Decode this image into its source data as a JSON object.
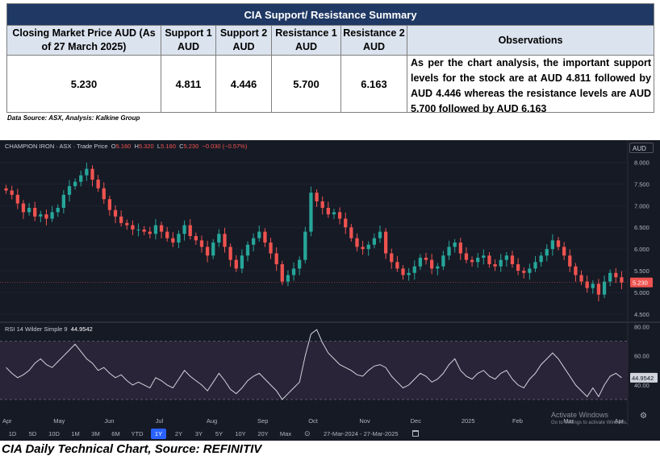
{
  "table": {
    "title": "CIA Support/  Resistance Summary",
    "headers": [
      "Closing Market Price AUD (As of 27 March 2025)",
      "Support 1 AUD",
      "Support 2 AUD",
      "Resistance 1 AUD",
      "Resistance 2 AUD",
      "Observations"
    ],
    "values": [
      "5.230",
      "4.811",
      "4.446",
      "5.700",
      "6.163"
    ],
    "observations": "As per the chart analysis, the important support levels for the stock are at AUD 4.811 followed by AUD 4.446 whereas the resistance levels are AUD 5.700 followed by AUD 6.163"
  },
  "source_note": "Data Source: ASX, Analysis: Kalkine Group",
  "chart_header": {
    "symbol": "CHAMPION IRON · ASX · Trade Price",
    "o_label": "O",
    "o_value": "5.160",
    "h_label": "H",
    "h_value": "5.320",
    "l_label": "L",
    "l_value": "5.160",
    "c_label": "C",
    "c_value": "5.230",
    "change": "−0.030 (−0.57%)",
    "currency": "AUD",
    "rsi_label": "RSI 14 Wilder Simple 9",
    "rsi_value": "44.9542"
  },
  "toolbar": {
    "timeframes": [
      "1D",
      "5D",
      "10D",
      "1M",
      "3M",
      "6M",
      "YTD",
      "1Y",
      "2Y",
      "3Y",
      "5Y",
      "10Y",
      "20Y",
      "Max"
    ],
    "active": "1Y",
    "date_range": "27-Mar-2024 - 27-Mar-2025"
  },
  "watermark": {
    "line1": "Activate Windows",
    "line2": "Go to Settings to activate Windows."
  },
  "caption": "CIA Daily Technical Chart, Source: REFINITIV",
  "colors": {
    "up": "#26a69a",
    "down": "#ef5350",
    "background": "#161a25",
    "rsi_line": "#d1d4dc",
    "rsi_band": "#2a2438",
    "header_blue": "#1f3864",
    "last_price_tag": "#ef5350"
  },
  "chart_data": [
    {
      "type": "candlestick",
      "title": "CHAMPION IRON · ASX · Trade Price",
      "x_ticks": [
        "Apr",
        "May",
        "Jun",
        "Jul",
        "Aug",
        "Sep",
        "Oct",
        "Nov",
        "Dec",
        "2025",
        "Feb",
        "Mar",
        "Apr"
      ],
      "y_ticks": [
        8.0,
        7.5,
        7.0,
        6.5,
        6.0,
        5.5,
        5.0,
        4.5
      ],
      "ylim": [
        4.35,
        8.25
      ],
      "last_price": 5.23,
      "last_price_label": "5.230",
      "series": [
        {
          "values": [
            7.35,
            7.25,
            7.05,
            6.85,
            6.95,
            6.75,
            6.8,
            6.7,
            6.85,
            6.95,
            7.25,
            7.45,
            7.55,
            7.7,
            7.85,
            7.6,
            7.4,
            7.15,
            6.9,
            6.75,
            6.6,
            6.55,
            6.45,
            6.45,
            6.4,
            6.35,
            6.55,
            6.4,
            6.25,
            6.15,
            6.35,
            6.55,
            6.3,
            6.2,
            6.05,
            5.85,
            6.15,
            6.35,
            6.05,
            5.75,
            5.55,
            5.85,
            6.1,
            6.25,
            6.4,
            6.15,
            5.9,
            5.65,
            5.25,
            5.4,
            5.55,
            5.75,
            6.4,
            7.3,
            7.1,
            6.95,
            6.8,
            6.85,
            6.7,
            6.5,
            6.25,
            6.05,
            6.0,
            6.1,
            6.25,
            6.4,
            5.9,
            5.7,
            5.55,
            5.4,
            5.45,
            5.6,
            5.8,
            5.75,
            5.55,
            5.6,
            5.85,
            6.05,
            6.15,
            5.9,
            5.75,
            5.7,
            5.8,
            5.85,
            5.65,
            5.6,
            5.75,
            5.85,
            5.65,
            5.5,
            5.45,
            5.55,
            5.7,
            5.85,
            6.0,
            6.2,
            6.05,
            5.85,
            5.6,
            5.4,
            5.25,
            5.1,
            5.2,
            4.95,
            5.25,
            5.45,
            5.35,
            5.23
          ]
        }
      ]
    },
    {
      "type": "line",
      "title": "RSI 14 Wilder Simple 9",
      "y_ticks": [
        80.0,
        60.0,
        40.0
      ],
      "ylim": [
        20,
        82
      ],
      "band": [
        30,
        70
      ],
      "last_value_label": "44.9542",
      "series": [
        {
          "values": [
            52,
            48,
            45,
            47,
            50,
            55,
            58,
            54,
            52,
            56,
            60,
            64,
            68,
            63,
            58,
            55,
            50,
            52,
            48,
            45,
            47,
            43,
            40,
            42,
            40,
            38,
            45,
            43,
            40,
            38,
            44,
            50,
            46,
            43,
            40,
            36,
            42,
            48,
            43,
            37,
            34,
            38,
            43,
            46,
            48,
            44,
            40,
            36,
            30,
            34,
            38,
            42,
            60,
            75,
            78,
            69,
            62,
            58,
            54,
            52,
            50,
            47,
            46,
            50,
            53,
            54,
            52,
            46,
            42,
            38,
            40,
            44,
            48,
            46,
            42,
            44,
            48,
            54,
            58,
            50,
            46,
            44,
            48,
            50,
            46,
            44,
            48,
            50,
            44,
            40,
            38,
            44,
            48,
            54,
            58,
            62,
            58,
            52,
            46,
            40,
            36,
            32,
            38,
            32,
            40,
            46,
            48,
            45
          ]
        }
      ]
    }
  ]
}
